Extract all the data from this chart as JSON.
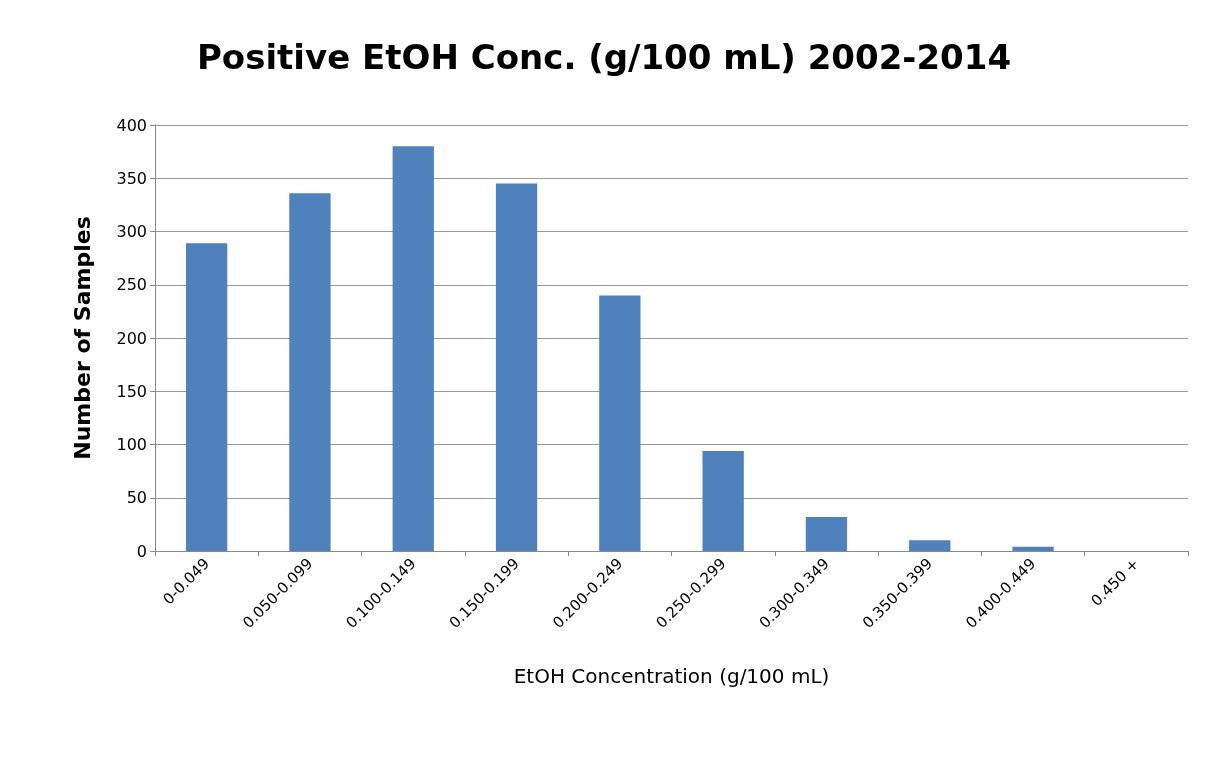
{
  "chart_data": {
    "type": "bar",
    "title": "Positive EtOH Conc. (g/100 mL) 2002-2014",
    "xlabel": "EtOH Concentration (g/100 mL)",
    "ylabel": "Number of Samples",
    "categories": [
      "0-0.049",
      "0.050-0.099",
      "0.100-0.149",
      "0.150-0.199",
      "0.200-0.249",
      "0.250-0.299",
      "0.300-0.349",
      "0.350-0.399",
      "0.400-0.449",
      "0.450 +"
    ],
    "values": [
      289,
      336,
      380,
      345,
      240,
      94,
      32,
      10,
      4,
      0
    ],
    "color": "#4f81bd",
    "ylim": [
      0,
      400
    ],
    "yticks": [
      0,
      50,
      100,
      150,
      200,
      250,
      300,
      350,
      400
    ],
    "grid": "y"
  }
}
